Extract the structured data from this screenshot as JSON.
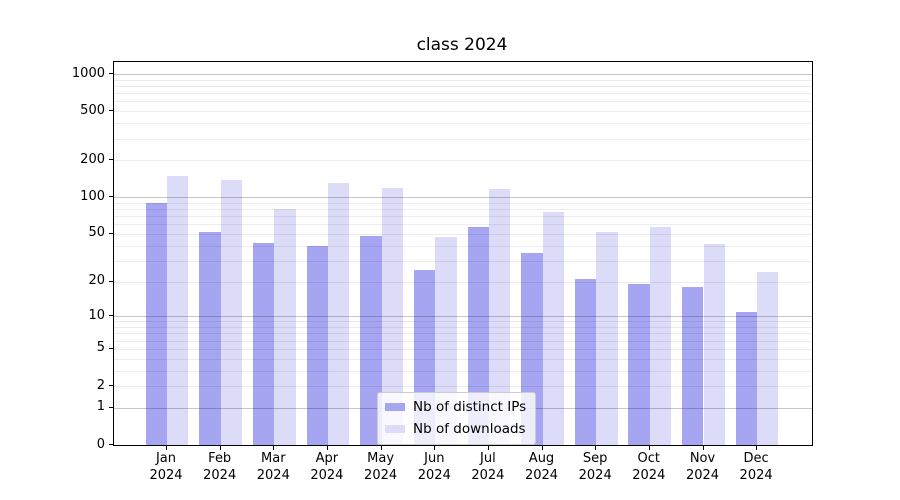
{
  "chart_data": {
    "type": "bar",
    "title": "class 2024",
    "categories": [
      "Jan",
      "Feb",
      "Mar",
      "Apr",
      "May",
      "Jun",
      "Jul",
      "Aug",
      "Sep",
      "Oct",
      "Nov",
      "Dec"
    ],
    "year_label": "2024",
    "series": [
      {
        "name": "Nb of distinct IPs",
        "color": "#a5a5f1",
        "values": [
          90,
          52,
          42,
          40,
          48,
          25,
          57,
          35,
          21,
          19,
          18,
          11
        ]
      },
      {
        "name": "Nb of downloads",
        "color": "#dcdcf8",
        "values": [
          148,
          139,
          80,
          131,
          119,
          47,
          117,
          75,
          52,
          57,
          41,
          24
        ]
      }
    ],
    "xlabel": "",
    "ylabel": "",
    "yscale": "log1p",
    "ylim": [
      0,
      1250
    ],
    "ytick_values": [
      1000,
      500,
      200,
      100,
      50,
      20,
      10,
      5,
      2,
      1,
      0
    ],
    "grid": {
      "major_values": [
        1,
        10,
        100,
        1000
      ],
      "minor_decades": [
        1,
        10,
        100
      ],
      "on": true
    },
    "legend_position": "lower center"
  }
}
